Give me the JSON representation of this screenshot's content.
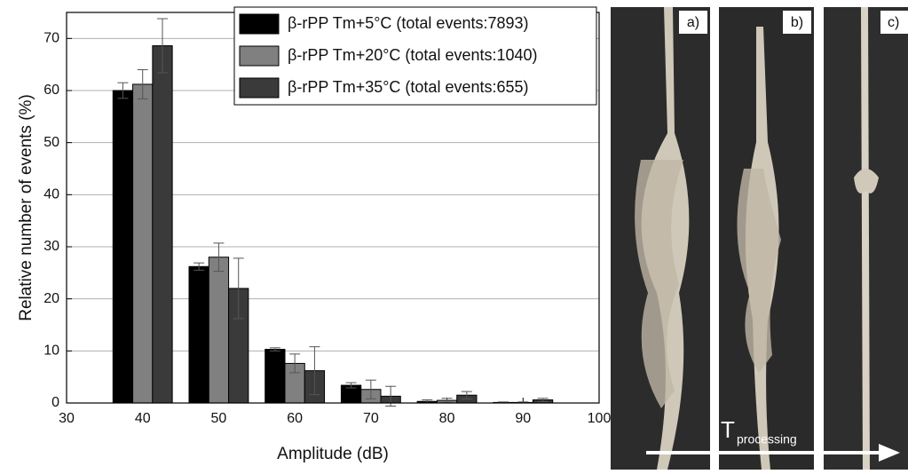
{
  "chart_data": {
    "type": "bar",
    "x_label": "Amplitude (dB)",
    "y_label": "Relative number of events (%)",
    "x": [
      40,
      50,
      60,
      70,
      80,
      90
    ],
    "xlim": [
      30,
      100
    ],
    "xticks": [
      30,
      40,
      50,
      60,
      70,
      80,
      90,
      100
    ],
    "ylim": [
      0,
      75
    ],
    "yticks": [
      0,
      10,
      20,
      30,
      40,
      50,
      60,
      70
    ],
    "grid": true,
    "legend": "upper right",
    "series": [
      {
        "name": "β-rPP Tm+5°C (total events:7893)",
        "color": "#000000",
        "values": [
          60,
          26.2,
          10.3,
          3.4,
          0.3,
          0.1
        ],
        "errors": [
          1.5,
          0.7,
          0.3,
          0.5,
          0.3,
          0.1
        ]
      },
      {
        "name": "β-rPP Tm+20°C (total events:1040)",
        "color": "#808080",
        "values": [
          61.2,
          28,
          7.6,
          2.6,
          0.5,
          0.1
        ],
        "errors": [
          2.8,
          2.7,
          1.8,
          1.8,
          0.4,
          0.1
        ]
      },
      {
        "name": "β-rPP Tm+35°C (total events:655)",
        "color": "#3a3a3a",
        "values": [
          68.6,
          22,
          6.2,
          1.3,
          1.5,
          0.6
        ],
        "errors": [
          5.2,
          5.8,
          4.6,
          1.9,
          0.7,
          0.3
        ]
      }
    ]
  },
  "photos": {
    "panels": [
      "a)",
      "b)",
      "c)"
    ],
    "arrow_label": "T",
    "arrow_subscript": "processing"
  }
}
